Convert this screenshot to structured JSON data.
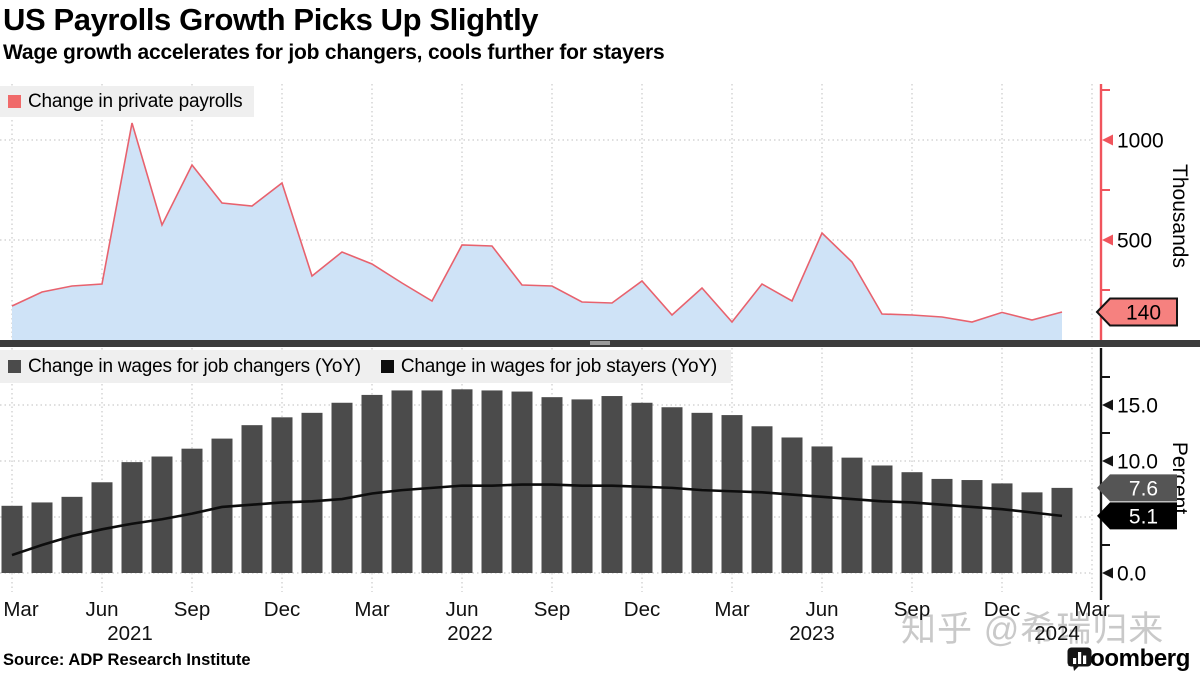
{
  "header": {
    "title": "US Payrolls Growth Picks Up Slightly",
    "subtitle": "Wage growth accelerates for job changers, cools further for stayers"
  },
  "top_panel": {
    "legend": [
      {
        "label": "Change in private payrolls",
        "color": "#f06a6a"
      }
    ],
    "axis": {
      "title": "Thousands",
      "color": "#f0545c",
      "labeled_ticks": [
        1000,
        500
      ],
      "minor_ticks": [
        1250,
        750,
        250
      ],
      "range": [
        0,
        1280
      ]
    },
    "badge": {
      "value": "140",
      "fill": "#f6817f",
      "border": "#141414",
      "text_color": "#000000"
    }
  },
  "bottom_panel": {
    "legend": [
      {
        "label": "Change in wages for job changers (YoY)",
        "color": "#4b4b4b"
      },
      {
        "label": "Change in wages for job stayers (YoY)",
        "color": "#0d0d0d"
      }
    ],
    "axis": {
      "title": "Percent",
      "color": "#141414",
      "labeled_ticks": [
        15.0,
        10.0,
        0.0
      ],
      "minor_ticks": [
        17.5,
        12.5,
        2.5
      ],
      "range": [
        0,
        18.2
      ]
    },
    "badges": [
      {
        "value": "7.6",
        "fill": "#555555",
        "text_color": "#ffffff"
      },
      {
        "value": "5.1",
        "fill": "#000000",
        "text_color": "#ffffff"
      }
    ]
  },
  "x_axis": {
    "tick_labels": [
      "Mar",
      "Jun",
      "Sep",
      "Dec",
      "Mar",
      "Jun",
      "Sep",
      "Dec",
      "Mar",
      "Jun",
      "Sep",
      "Dec",
      "Mar"
    ],
    "year_labels": [
      "2021",
      "2022",
      "2023",
      "2024"
    ]
  },
  "footer": {
    "source": "Source: ADP Research Institute",
    "brand": "Bloomberg"
  },
  "watermark": "知乎 @希瑞归来",
  "colors": {
    "area_fill": "#cfe3f7",
    "area_line": "#e8626e",
    "grid": "#bfbfbf",
    "legend_bg": "#efefef"
  },
  "chart_data": {
    "x_categories": [
      "Mar 2021",
      "Apr 2021",
      "May 2021",
      "Jun 2021",
      "Jul 2021",
      "Aug 2021",
      "Sep 2021",
      "Oct 2021",
      "Nov 2021",
      "Dec 2021",
      "Jan 2022",
      "Feb 2022",
      "Mar 2022",
      "Apr 2022",
      "May 2022",
      "Jun 2022",
      "Jul 2022",
      "Aug 2022",
      "Sep 2022",
      "Oct 2022",
      "Nov 2022",
      "Dec 2022",
      "Jan 2023",
      "Feb 2023",
      "Mar 2023",
      "Apr 2023",
      "May 2023",
      "Jun 2023",
      "Jul 2023",
      "Aug 2023",
      "Sep 2023",
      "Oct 2023",
      "Nov 2023",
      "Dec 2023",
      "Jan 2024",
      "Feb 2024"
    ],
    "charts": [
      {
        "type": "area",
        "name": "Change in private payrolls",
        "unit": "Thousands",
        "values": [
          170,
          240,
          270,
          280,
          1085,
          575,
          875,
          685,
          670,
          785,
          320,
          440,
          380,
          285,
          195,
          475,
          470,
          275,
          270,
          190,
          185,
          295,
          125,
          260,
          90,
          280,
          195,
          535,
          390,
          130,
          125,
          115,
          90,
          138,
          100,
          140
        ],
        "ylim": [
          0,
          1280
        ],
        "yticks": [
          500,
          1000
        ],
        "latest_value": 140,
        "grid": "dotted quarterly",
        "legend_position": "top-left"
      },
      {
        "type": "bar+line",
        "unit": "Percent",
        "series": [
          {
            "name": "Change in wages for job changers (YoY)",
            "type": "bar",
            "values": [
              6.0,
              6.3,
              6.8,
              8.1,
              9.9,
              10.4,
              11.1,
              12.0,
              13.2,
              13.9,
              14.3,
              15.2,
              15.9,
              16.3,
              16.3,
              16.4,
              16.3,
              16.2,
              15.7,
              15.5,
              15.8,
              15.2,
              14.8,
              14.3,
              14.1,
              13.1,
              12.1,
              11.3,
              10.3,
              9.6,
              9.0,
              8.4,
              8.3,
              8.0,
              7.2,
              7.6
            ]
          },
          {
            "name": "Change in wages for job stayers (YoY)",
            "type": "line",
            "values": [
              1.6,
              2.5,
              3.3,
              3.9,
              4.4,
              4.8,
              5.3,
              5.9,
              6.1,
              6.3,
              6.4,
              6.6,
              7.1,
              7.4,
              7.6,
              7.8,
              7.8,
              7.9,
              7.9,
              7.8,
              7.8,
              7.7,
              7.6,
              7.4,
              7.3,
              7.2,
              7.0,
              6.8,
              6.6,
              6.4,
              6.3,
              6.1,
              5.9,
              5.7,
              5.4,
              5.1
            ]
          }
        ],
        "ylim": [
          0,
          18.2
        ],
        "yticks": [
          0.0,
          10.0,
          15.0
        ],
        "latest_values": {
          "job_changers": 7.6,
          "job_stayers": 5.1
        },
        "grid": "dotted quarterly",
        "legend_position": "top-left"
      }
    ]
  }
}
